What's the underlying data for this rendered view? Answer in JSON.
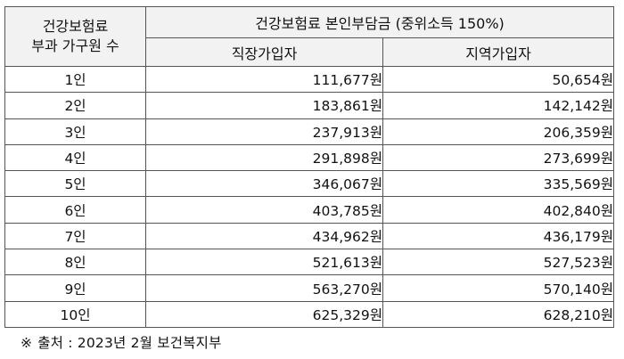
{
  "table": {
    "row_header_line1": "건강보험료",
    "row_header_line2": "부과 가구원 수",
    "group_header": "건강보험료 본인부담금 (중위소득 150%)",
    "col_employee": "직장가입자",
    "col_regional": "지역가입자",
    "rows": [
      {
        "count": "1인",
        "employee": "111,677원",
        "regional": "50,654원"
      },
      {
        "count": "2인",
        "employee": "183,861원",
        "regional": "142,142원"
      },
      {
        "count": "3인",
        "employee": "237,913원",
        "regional": "206,359원"
      },
      {
        "count": "4인",
        "employee": "291,898원",
        "regional": "273,699원"
      },
      {
        "count": "5인",
        "employee": "346,067원",
        "regional": "335,569원"
      },
      {
        "count": "6인",
        "employee": "403,785원",
        "regional": "402,840원"
      },
      {
        "count": "7인",
        "employee": "434,962원",
        "regional": "436,179원"
      },
      {
        "count": "8인",
        "employee": "521,613원",
        "regional": "527,523원"
      },
      {
        "count": "9인",
        "employee": "563,270원",
        "regional": "570,140원"
      },
      {
        "count": "10인",
        "employee": "625,329원",
        "regional": "628,210원"
      }
    ]
  },
  "source": {
    "mark": "※",
    "text": "출처 : 2023년 2월 보건복지부"
  }
}
